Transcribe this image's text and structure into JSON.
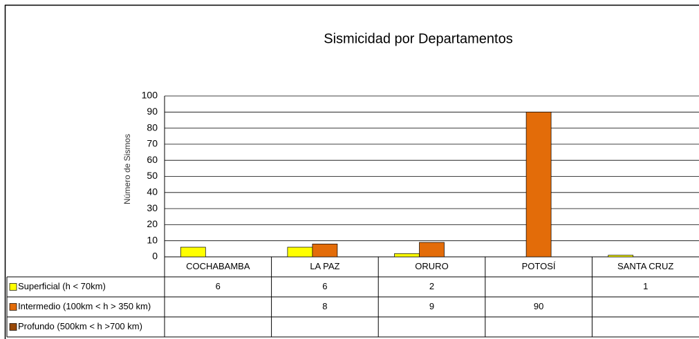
{
  "chart_data": {
    "type": "bar",
    "title": "Sismicidad por Departamentos",
    "y_label": "Número de Sismos",
    "categories": [
      "COCHABAMBA",
      "LA PAZ",
      "ORURO",
      "POTOSÍ",
      "SANTA CRUZ"
    ],
    "series": [
      {
        "name": "Superficial (h < 70km)",
        "color": "#ffff00",
        "values": [
          6,
          6,
          2,
          null,
          1
        ]
      },
      {
        "name": "Intermedio (100km < h > 350 km)",
        "color": "#e36c09",
        "values": [
          null,
          8,
          9,
          90,
          null
        ]
      },
      {
        "name": "Profundo (500km < h >700 km)",
        "color": "#984807",
        "values": [
          null,
          null,
          null,
          null,
          null
        ]
      }
    ],
    "ylim": [
      0,
      100
    ],
    "yticks": [
      0,
      10,
      20,
      30,
      40,
      50,
      60,
      70,
      80,
      90,
      100
    ],
    "grid": true
  }
}
